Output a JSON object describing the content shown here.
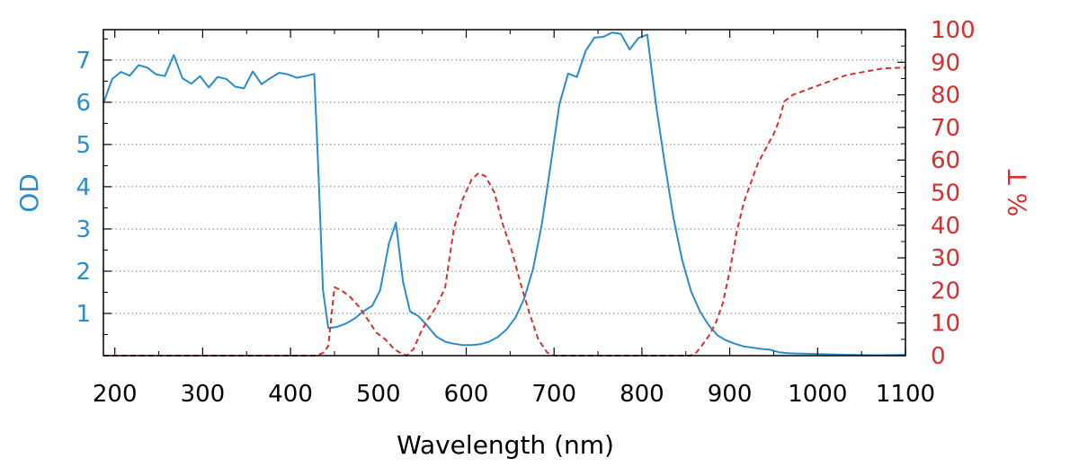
{
  "chart_data": {
    "type": "line",
    "xlabel": "Wavelength (nm)",
    "y_left_label": "OD",
    "y_right_label": "% T",
    "xlim": [
      187,
      1100
    ],
    "x_ticks": [
      200,
      300,
      400,
      500,
      600,
      700,
      800,
      900,
      1000,
      1100
    ],
    "y_left_lim": [
      0,
      7.72
    ],
    "y_left_ticks": [
      1,
      2,
      3,
      4,
      5,
      6,
      7
    ],
    "y_right_lim": [
      0,
      100
    ],
    "y_right_ticks": [
      0,
      10,
      20,
      30,
      40,
      50,
      60,
      70,
      80,
      90,
      100
    ],
    "grid": "horizontal dotted",
    "colors": {
      "od": "#2a8ccc",
      "transmission": "#d62f2f",
      "grid": "#7a7a7a",
      "frame": "#000000"
    },
    "series": [
      {
        "axis": "left",
        "style": "solid",
        "x": [
          187,
          197,
          207,
          217,
          227,
          237,
          247,
          257,
          267,
          277,
          287,
          297,
          307,
          317,
          327,
          337,
          347,
          357,
          367,
          377,
          387,
          397,
          407,
          417,
          427,
          432,
          437,
          443,
          453,
          463,
          473,
          483,
          493,
          502,
          512,
          520,
          528,
          536,
          546,
          556,
          566,
          576,
          586,
          596,
          606,
          616,
          626,
          636,
          646,
          656,
          666,
          676,
          686,
          696,
          706,
          716,
          726,
          736,
          746,
          756,
          766,
          776,
          786,
          796,
          806,
          816,
          826,
          836,
          846,
          856,
          866,
          876,
          886,
          896,
          906,
          916,
          926,
          936,
          946,
          956,
          966,
          976,
          996,
          1016,
          1036,
          1056,
          1076,
          1100
        ],
        "y": [
          5.98,
          6.55,
          6.72,
          6.63,
          6.88,
          6.82,
          6.66,
          6.62,
          7.12,
          6.57,
          6.44,
          6.62,
          6.35,
          6.6,
          6.55,
          6.37,
          6.33,
          6.73,
          6.43,
          6.57,
          6.7,
          6.66,
          6.58,
          6.62,
          6.67,
          4.2,
          1.55,
          0.65,
          0.68,
          0.76,
          0.88,
          1.05,
          1.18,
          1.55,
          2.65,
          3.15,
          1.75,
          1.05,
          0.93,
          0.7,
          0.45,
          0.33,
          0.28,
          0.25,
          0.25,
          0.27,
          0.33,
          0.44,
          0.62,
          0.9,
          1.35,
          2.05,
          3.1,
          4.5,
          5.95,
          6.68,
          6.6,
          7.22,
          7.53,
          7.55,
          7.65,
          7.62,
          7.25,
          7.52,
          7.6,
          5.95,
          4.55,
          3.25,
          2.25,
          1.52,
          1.05,
          0.72,
          0.48,
          0.36,
          0.28,
          0.22,
          0.19,
          0.16,
          0.14,
          0.08,
          0.06,
          0.05,
          0.04,
          0.03,
          0.02,
          0.01,
          0.01,
          0.02
        ]
      },
      {
        "axis": "right",
        "style": "dashed",
        "x": [
          187,
          400,
          430,
          438,
          443,
          450,
          458,
          468,
          478,
          488,
          498,
          508,
          518,
          524,
          532,
          540,
          548,
          556,
          566,
          576,
          586,
          596,
          606,
          614,
          622,
          632,
          642,
          652,
          662,
          672,
          682,
          692,
          700,
          740,
          780,
          820,
          855,
          862,
          868,
          876,
          884,
          892,
          900,
          908,
          916,
          924,
          932,
          940,
          946,
          950,
          956,
          962,
          972,
          982,
          992,
          1002,
          1012,
          1022,
          1032,
          1042,
          1052,
          1062,
          1072,
          1082,
          1092,
          1100
        ],
        "y": [
          0,
          0,
          0,
          1,
          3,
          21,
          20,
          18,
          15,
          11,
          7,
          5,
          2,
          1,
          0,
          2,
          7,
          11,
          15,
          21,
          39,
          48,
          54,
          56,
          55,
          50,
          40,
          32,
          22,
          13,
          5,
          1,
          0,
          0,
          0,
          0,
          0,
          1,
          3,
          6,
          10,
          16,
          26,
          38,
          47,
          53,
          59,
          63,
          66,
          68,
          72,
          78,
          80,
          81,
          82,
          83,
          84,
          85,
          86,
          86.5,
          87,
          87.5,
          88,
          88.2,
          88.3,
          88.3
        ]
      }
    ]
  }
}
